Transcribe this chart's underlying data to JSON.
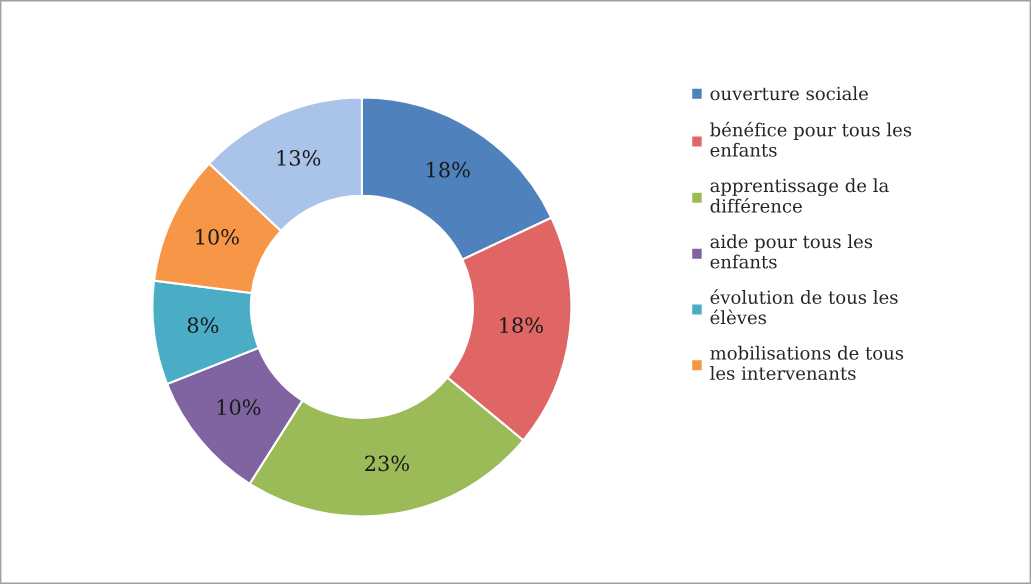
{
  "chart_data": {
    "type": "donut",
    "categories": [
      "ouverture sociale",
      "bénéfice pour tous les enfants",
      "apprentissage de la différence",
      "aide pour tous les enfants",
      "évolution de tous les élèves",
      "mobilisations de tous les intervenants",
      null
    ],
    "values": [
      18,
      18,
      23,
      10,
      8,
      10,
      13
    ],
    "value_labels": [
      "18%",
      "18%",
      "23%",
      "10%",
      "8%",
      "10%",
      "13%"
    ],
    "colors": [
      "#4f81bd",
      "#e06666",
      "#9bbb59",
      "#8064a2",
      "#4bacc6",
      "#f79646",
      "#a9c4e8"
    ],
    "legend": "right"
  }
}
